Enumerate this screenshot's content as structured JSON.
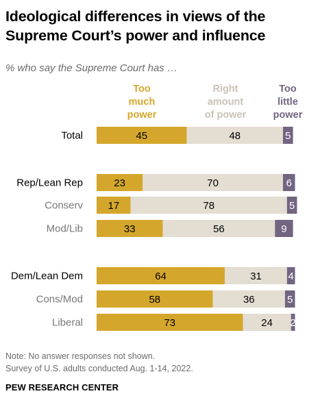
{
  "title": "Ideological differences in views of the Supreme Court’s power and influence",
  "subtitle": "% who say the Supreme Court has …",
  "note": "Note: No answer responses not shown.",
  "source": "Survey of U.S. adults conducted Aug. 1-14, 2022.",
  "brand": "PEW RESEARCH CENTER",
  "colors": {
    "too_much": "#d4a72c",
    "right_amount": "#e3ddd2",
    "too_little": "#736482",
    "label_gray": "#777777"
  },
  "legend": {
    "too_much": [
      "Too",
      "much",
      "power"
    ],
    "right_amount": [
      "Right",
      "amount",
      "of power"
    ],
    "too_little": [
      "Too",
      "little",
      "power"
    ]
  },
  "chart_data": {
    "type": "bar",
    "stacked": true,
    "orientation": "horizontal",
    "categories": [
      "Total",
      "Rep/Lean Rep",
      "Conserv",
      "Mod/Lib",
      "Dem/Lean Dem",
      "Cons/Mod",
      "Liberal"
    ],
    "category_style": [
      "main",
      "main",
      "sub",
      "sub",
      "main",
      "sub",
      "sub"
    ],
    "series": [
      {
        "name": "Too much power",
        "values": [
          45,
          23,
          17,
          33,
          64,
          58,
          73
        ]
      },
      {
        "name": "Right amount of power",
        "values": [
          48,
          70,
          78,
          56,
          31,
          36,
          24
        ]
      },
      {
        "name": "Too little power",
        "values": [
          5,
          6,
          5,
          9,
          4,
          5,
          2
        ]
      }
    ]
  }
}
